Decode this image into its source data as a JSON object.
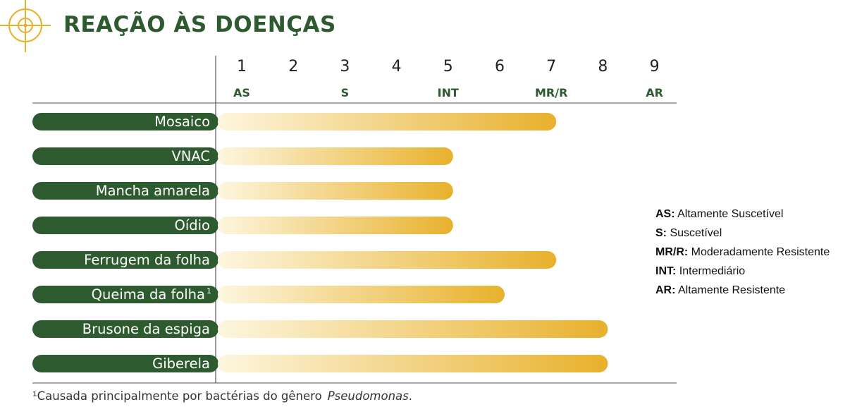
{
  "header": {
    "title": "REAÇÃO ÀS DOENÇAS",
    "icon": "target-crosshair-icon"
  },
  "colors": {
    "green": "#2d5a2e",
    "accent_gold": "#e8b12c",
    "bar_start": "#fdf6df",
    "bar_end": "#e8b12c"
  },
  "chart_data": {
    "type": "bar",
    "orientation": "horizontal",
    "categories": [
      "Mosaico",
      "VNAC",
      "Mancha amarela",
      "Oídio",
      "Ferrugem da folha",
      "Queima da folha",
      "Brusone da espiga",
      "Giberela"
    ],
    "category_superscripts": [
      "",
      "",
      "",
      "",
      "",
      "1",
      "",
      ""
    ],
    "values": [
      7,
      5,
      5,
      5,
      7,
      6,
      8,
      8
    ],
    "x_ticks": [
      "1",
      "2",
      "3",
      "4",
      "5",
      "6",
      "7",
      "8",
      "9"
    ],
    "x_tick_codes": [
      {
        "at": 1,
        "label": "AS"
      },
      {
        "at": 3,
        "label": "S"
      },
      {
        "at": 5,
        "label": "INT"
      },
      {
        "at": 7,
        "label": "MR/R"
      },
      {
        "at": 9,
        "label": "AR"
      }
    ],
    "xlim": [
      1,
      9
    ],
    "grid": false
  },
  "legend": {
    "items": [
      {
        "code": "AS:",
        "text": "Altamente Suscetível"
      },
      {
        "code": "S:",
        "text": "Suscetível"
      },
      {
        "code": "MR/R:",
        "text": "Moderadamente Resistente"
      },
      {
        "code": "INT:",
        "text": "Intermediário"
      },
      {
        "code": "AR:",
        "text": "Altamente Resistente"
      }
    ]
  },
  "footnote": {
    "marker": "¹",
    "text": "Causada principalmente por bactérias do gênero",
    "italic": "Pseudomonas",
    "end": "."
  }
}
